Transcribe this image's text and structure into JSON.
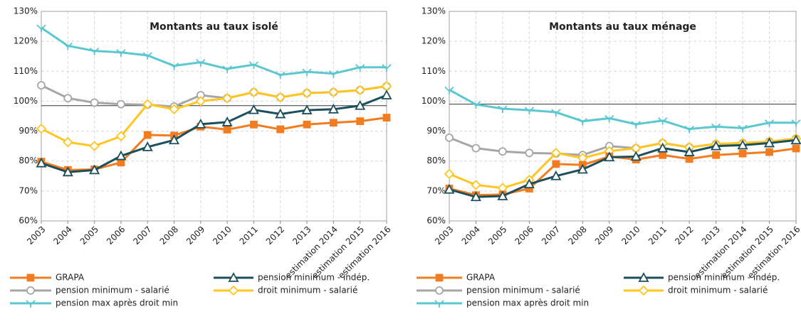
{
  "chart_data": [
    {
      "type": "line",
      "title": "Montants au taux isolé",
      "categories": [
        "2003",
        "2004",
        "2005",
        "2006",
        "2007",
        "2008",
        "2009",
        "2010",
        "2011",
        "2012",
        "2013",
        "estimation 2014",
        "estimation 2015",
        "estimation 2016"
      ],
      "ylim": [
        60,
        130
      ],
      "yticks": [
        {
          "value": 60,
          "label": "60%"
        },
        {
          "value": 70,
          "label": "70%"
        },
        {
          "value": 80,
          "label": "80%"
        },
        {
          "value": 90,
          "label": "90%"
        },
        {
          "value": 100,
          "label": "100%"
        },
        {
          "value": 110,
          "label": "110%"
        },
        {
          "value": 120,
          "label": "120%"
        },
        {
          "value": 130,
          "label": "130%"
        }
      ],
      "grid": true,
      "reference_line": 98.5,
      "series": [
        {
          "name": "pension max après droit min",
          "color": "#5bc8d0",
          "marker": "x",
          "values": [
            124.5,
            118.5,
            116.8,
            116.3,
            115.3,
            111.8,
            113,
            110.8,
            112.2,
            108.8,
            109.8,
            109.2,
            111.3,
            111.3
          ]
        },
        {
          "name": "pension minimum - salarié",
          "color": "#a6a6a6",
          "marker": "circle",
          "values": [
            105.3,
            101,
            99.5,
            99,
            98.8,
            98.2,
            102,
            101,
            103,
            101.3,
            102.7,
            103,
            103.7,
            105
          ]
        },
        {
          "name": "droit minimum - salarié",
          "color": "#ffc520",
          "marker": "diamond",
          "values": [
            90.8,
            86.3,
            85,
            88.3,
            99,
            97.3,
            100,
            101,
            103,
            101.3,
            102.7,
            103,
            103.7,
            105
          ]
        },
        {
          "name": "GRAPA",
          "color": "#f47c20",
          "marker": "square",
          "values": [
            79.8,
            77,
            77.2,
            79.5,
            88.7,
            88.5,
            91.5,
            90.5,
            92.2,
            90.6,
            92.2,
            92.8,
            93.3,
            94.5
          ]
        },
        {
          "name": "pension minimum - indép.",
          "color": "#1b4f5c",
          "marker": "triangle",
          "values": [
            79.3,
            76.3,
            77,
            81.7,
            84.7,
            87,
            92.3,
            93,
            97.1,
            95.7,
            97,
            97.3,
            98.5,
            102
          ]
        }
      ]
    },
    {
      "type": "line",
      "title": "Montants au taux ménage",
      "categories": [
        "2003",
        "2004",
        "2005",
        "2006",
        "2007",
        "2008",
        "2009",
        "2010",
        "2011",
        "2012",
        "2013",
        "estimation 2014",
        "estimation 2015",
        "estimation 2016"
      ],
      "ylim": [
        60,
        130
      ],
      "yticks": [
        {
          "value": 60,
          "label": "60%"
        },
        {
          "value": 70,
          "label": "70%"
        },
        {
          "value": 80,
          "label": "80%"
        },
        {
          "value": 90,
          "label": "90%"
        },
        {
          "value": 100,
          "label": "100%"
        },
        {
          "value": 110,
          "label": "110%"
        },
        {
          "value": 120,
          "label": "120%"
        },
        {
          "value": 130,
          "label": "130%"
        }
      ],
      "grid": true,
      "reference_line": 99,
      "series": [
        {
          "name": "pension max après droit min",
          "color": "#5bc8d0",
          "marker": "x",
          "values": [
            103.8,
            98.9,
            97.5,
            97,
            96.3,
            93.3,
            94.3,
            92.3,
            93.5,
            90.7,
            91.5,
            91,
            92.8,
            92.8
          ]
        },
        {
          "name": "pension minimum - salarié",
          "color": "#a6a6a6",
          "marker": "circle",
          "values": [
            87.8,
            84.3,
            83.2,
            82.7,
            82.5,
            82,
            85,
            84.3,
            86,
            84.6,
            85.7,
            86,
            86.5,
            87.5
          ]
        },
        {
          "name": "droit minimum - salarié",
          "color": "#ffc520",
          "marker": "diamond",
          "values": [
            75.7,
            72,
            71,
            73.7,
            82.7,
            81,
            83.3,
            84.3,
            86,
            84.6,
            85.7,
            86,
            86.5,
            87.5
          ]
        },
        {
          "name": "GRAPA",
          "color": "#f47c20",
          "marker": "square",
          "values": [
            70.8,
            68.6,
            68.8,
            70.8,
            79,
            78.7,
            81.5,
            80.5,
            82,
            80.7,
            82,
            82.5,
            83,
            84.2
          ]
        },
        {
          "name": "pension minimum - indép.",
          "color": "#1b4f5c",
          "marker": "triangle",
          "values": [
            70.5,
            68,
            68.3,
            72.3,
            75,
            77.2,
            81.3,
            81.5,
            84.3,
            83,
            85,
            85.3,
            86,
            87
          ]
        }
      ]
    }
  ]
}
